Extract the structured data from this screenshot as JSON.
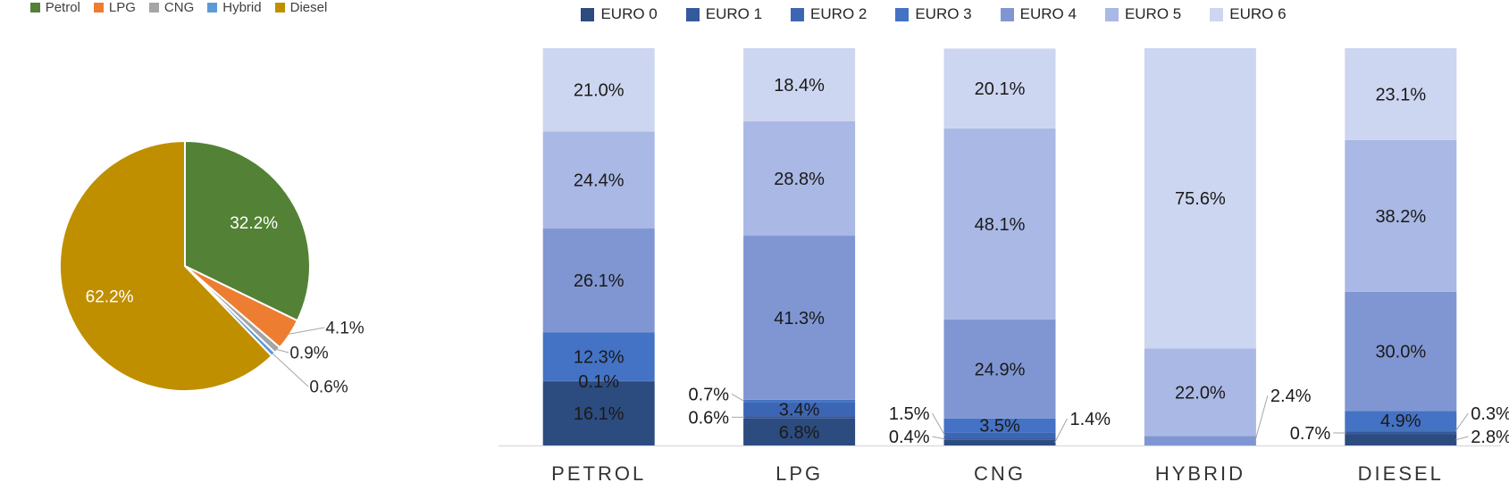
{
  "chart_data": [
    {
      "type": "pie",
      "title": "",
      "legend_position": "top",
      "labels": [
        "Petrol",
        "LPG",
        "CNG",
        "Hybrid",
        "Diesel"
      ],
      "values": [
        32.2,
        4.1,
        0.9,
        0.6,
        62.2
      ],
      "data_labels": [
        "32.2%",
        "4.1%",
        "0.9%",
        "0.6%",
        "62.2%"
      ],
      "colors": [
        "#538135",
        "#ED7D31",
        "#A5A5A5",
        "#5B9BD5",
        "#BF8F00"
      ],
      "label_placement": [
        "inside",
        "outside",
        "outside",
        "outside",
        "inside"
      ],
      "start_angle_deg": 0,
      "direction": "clockwise",
      "inside_label_color": "#FFFFFF",
      "outside_label_color": "#262626"
    },
    {
      "type": "stacked-bar-100",
      "title": "",
      "legend_position": "top",
      "categories": [
        "PETROL",
        "LPG",
        "CNG",
        "HYBRID",
        "DIESEL"
      ],
      "series": [
        {
          "name": "EURO 0",
          "color": "#2C4B7E",
          "values": [
            16.1,
            6.8,
            1.4,
            0,
            2.8
          ],
          "label_placement": [
            "inside",
            "inside",
            "right",
            "none",
            "right"
          ]
        },
        {
          "name": "EURO 1",
          "color": "#34599C",
          "values": [
            0.1,
            0.6,
            0.4,
            0,
            0.7
          ],
          "label_placement": [
            "inside",
            "left",
            "left",
            "none",
            "left"
          ]
        },
        {
          "name": "EURO 2",
          "color": "#3C66B4",
          "values": [
            0,
            3.4,
            1.5,
            0,
            0.3
          ],
          "label_placement": [
            "none",
            "inside",
            "left",
            "none",
            "right"
          ]
        },
        {
          "name": "EURO 3",
          "color": "#4472C4",
          "values": [
            12.3,
            0.7,
            3.5,
            0,
            4.9
          ],
          "label_placement": [
            "inside",
            "left",
            "inside",
            "none",
            "inside"
          ]
        },
        {
          "name": "EURO 4",
          "color": "#8096D3",
          "values": [
            26.1,
            41.3,
            24.9,
            2.4,
            30.0
          ],
          "label_placement": [
            "inside",
            "inside",
            "inside",
            "right",
            "inside"
          ]
        },
        {
          "name": "EURO 5",
          "color": "#A9B8E4",
          "values": [
            24.4,
            28.8,
            48.1,
            22.0,
            38.2
          ],
          "label_placement": [
            "inside",
            "inside",
            "inside",
            "inside",
            "inside"
          ]
        },
        {
          "name": "EURO 6",
          "color": "#CDD6F0",
          "values": [
            21.0,
            18.4,
            20.1,
            75.6,
            23.1
          ],
          "label_placement": [
            "inside",
            "inside",
            "inside",
            "inside",
            "inside"
          ]
        }
      ],
      "ylim": [
        0,
        100
      ],
      "grid": false,
      "label_color": "#1A1A1A"
    }
  ],
  "colors": {
    "axis_line": "#D9D9D9",
    "leader_line": "#A6A6A6",
    "category_label": "#333333",
    "legend_text": "#404040"
  }
}
